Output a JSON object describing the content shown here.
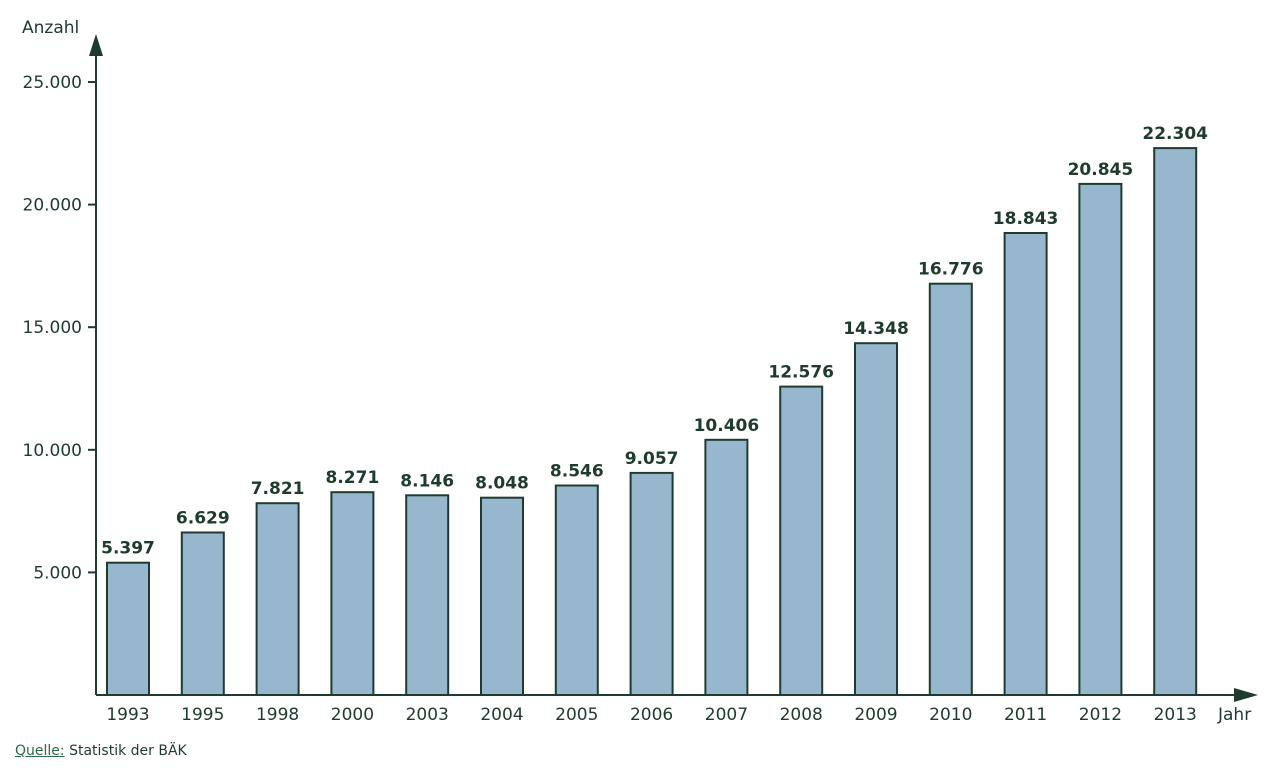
{
  "chart_data": {
    "type": "bar",
    "categories": [
      "1993",
      "1995",
      "1998",
      "2000",
      "2003",
      "2004",
      "2005",
      "2006",
      "2007",
      "2008",
      "2009",
      "2010",
      "2011",
      "2012",
      "2013"
    ],
    "values": [
      5397,
      6629,
      7821,
      8271,
      8146,
      8048,
      8546,
      9057,
      10406,
      12576,
      14348,
      16776,
      18843,
      20845,
      22304
    ],
    "value_labels": [
      "5.397",
      "6.629",
      "7.821",
      "8.271",
      "8.146",
      "8.048",
      "8.546",
      "9.057",
      "10.406",
      "12.576",
      "14.348",
      "16.776",
      "18.843",
      "20.845",
      "22.304"
    ],
    "yticks": [
      5000,
      10000,
      15000,
      20000,
      25000
    ],
    "ytick_labels": [
      "5.000",
      "10.000",
      "15.000",
      "20.000",
      "25.000"
    ],
    "ylabel": "Anzahl",
    "xlabel": "Jahr",
    "ylim": [
      0,
      25000
    ],
    "grid": false,
    "colors": {
      "bar": "#97b7cf",
      "axis": "#1f3b2d",
      "text": "#1f3b2d"
    }
  },
  "source": {
    "label": "Quelle:",
    "text": "Statistik der BÄK"
  }
}
